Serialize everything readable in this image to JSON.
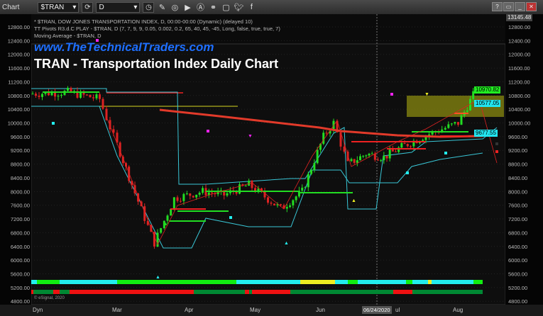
{
  "window": {
    "app_label": "Chart",
    "symbol": "$TRAN",
    "interval": "D",
    "controls": [
      "?",
      "▭",
      "_",
      "□",
      "✕"
    ]
  },
  "toolbar_icons": [
    "pencil-icon",
    "chart-style-icon",
    "play-icon",
    "alert-icon",
    "link-icon",
    "chat-icon",
    "twitter-icon",
    "facebook-icon"
  ],
  "legend": {
    "line1": "* $TRAN, DOW JONES TRANSPORTATION INDEX, D, 00:00-00:00 (Dynamic) (delayed 10)",
    "line2": "TT Pivots R3.d.C PLAY - $TRAN, D (7, 7, 9, 9, 0.05, 0.002, 0.2, 65, 40, 45, -45, Long, false, true, true, 7)",
    "line3": "Moving Average - $TRAN, D"
  },
  "overlay": {
    "site": "www.TheTechnicalTraders.com",
    "title": "TRAN - Transportation Index Daily Chart"
  },
  "copyright": "© eSignal, 2020",
  "axis": {
    "y_ticks": [
      "12800.00",
      "12400.00",
      "12000.00",
      "11600.00",
      "11200.00",
      "10800.00",
      "10400.00",
      "10000.00",
      "9600.00",
      "9200.00",
      "8800.00",
      "8400.00",
      "8000.00",
      "7600.00",
      "7200.00",
      "6800.00",
      "6400.00",
      "6000.00",
      "5600.00",
      "5200.00",
      "4800.00"
    ],
    "top_value": "13145.48",
    "price_tags": [
      {
        "value": "10970.82",
        "color": "#22ee22"
      },
      {
        "value": "10577.05",
        "color": "#22e5f0"
      },
      {
        "value": "9677.55",
        "color": "#22e5f0"
      }
    ],
    "x_labels": [
      "Mar",
      "Apr",
      "May",
      "Jun",
      "ul",
      "Aug"
    ],
    "dyn_label": "Dyn",
    "cursor_date": "06/24/2020"
  },
  "chart_data": {
    "type": "candlestick",
    "symbol": "$TRAN",
    "interval": "D",
    "approx_closes": [
      [
        "Jan",
        10850
      ],
      [
        "early Feb",
        10900
      ],
      [
        "mid Feb",
        10700
      ],
      [
        "late Feb",
        9600
      ],
      [
        "early Mar",
        8200
      ],
      [
        "mid Mar",
        6500
      ],
      [
        "late Mar",
        7800
      ],
      [
        "Apr",
        8000
      ],
      [
        "mid Apr",
        7900
      ],
      [
        "May",
        8200
      ],
      [
        "mid May",
        7500
      ],
      [
        "late May",
        8000
      ],
      [
        "early Jun",
        9600
      ],
      [
        "Jun",
        10000
      ],
      [
        "mid Jun",
        8800
      ],
      [
        "late Jun",
        9100
      ],
      [
        "Jul",
        9000
      ],
      [
        "mid Jul",
        9300
      ],
      [
        "late Jul",
        9600
      ],
      [
        "Aug",
        10000
      ],
      [
        "mid Aug",
        10970
      ]
    ],
    "colors": {
      "up": "#22dd22",
      "down": "#dd2222",
      "moving_average": "#e23a2a",
      "channel": "#39c6d6",
      "target_zone": "#8a8a10"
    }
  }
}
